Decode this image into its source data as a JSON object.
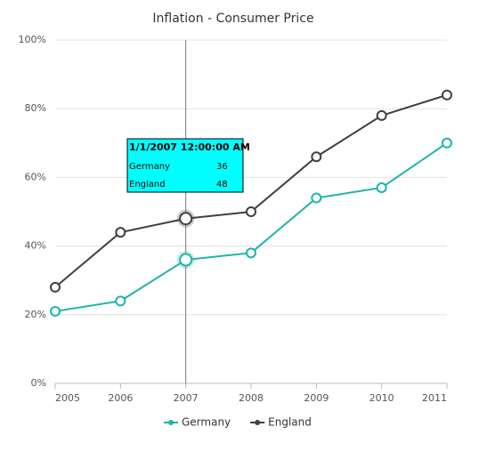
{
  "chart_data": {
    "type": "line",
    "title": "Inflation - Consumer Price",
    "x": [
      2005,
      2006,
      2007,
      2008,
      2009,
      2010,
      2011
    ],
    "xlim": [
      2005,
      2011
    ],
    "xticks": [
      2005,
      2006,
      2007,
      2008,
      2009,
      2010,
      2011
    ],
    "ylim": [
      0,
      100
    ],
    "yticks": [
      {
        "value": 0,
        "label": "0%"
      },
      {
        "value": 20,
        "label": "20%"
      },
      {
        "value": 40,
        "label": "40%"
      },
      {
        "value": 60,
        "label": "60%"
      },
      {
        "value": 80,
        "label": "80%"
      },
      {
        "value": 100,
        "label": "100%"
      }
    ],
    "grid": true,
    "legend": "bottom",
    "series": [
      {
        "name": "Germany",
        "color": "#1cb5a8",
        "values": [
          21,
          24,
          36,
          38,
          54,
          57,
          70
        ]
      },
      {
        "name": "England",
        "color": "#404040",
        "values": [
          28,
          44,
          48,
          50,
          66,
          78,
          84
        ]
      }
    ],
    "crosshair_x": 2007,
    "tooltip_title": "1/1/2007 12:00:00 AM"
  }
}
